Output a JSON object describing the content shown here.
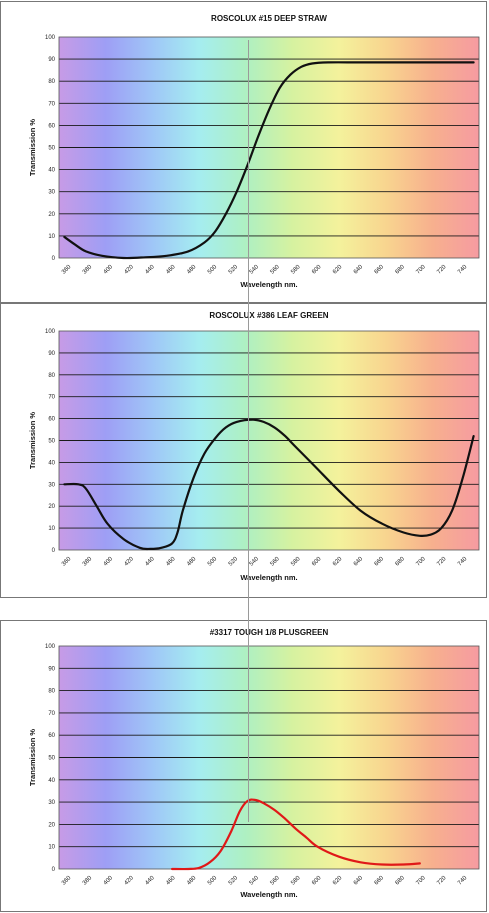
{
  "colors": {
    "curve_default": "#111111",
    "curve_highlight": "#e01818",
    "spectrum": [
      "#c79be6",
      "#9e9ef5",
      "#9fc6f7",
      "#a5edf0",
      "#aef0c2",
      "#d6f2a0",
      "#f4f29c",
      "#f8d58f",
      "#f7b08e",
      "#f69ba1"
    ]
  },
  "chart_data": [
    {
      "type": "line",
      "title": "ROSCOLUX #15 DEEP STRAW",
      "xlabel": "Wavelength nm.",
      "ylabel": "Transmission %",
      "ylim": [
        0,
        100
      ],
      "xlim": [
        360,
        750
      ],
      "yticks": [
        "0",
        "10",
        "20",
        "30",
        "40",
        "50",
        "60",
        "70",
        "80",
        "90",
        "100"
      ],
      "xticks": [
        "360",
        "380",
        "400",
        "420",
        "440",
        "460",
        "480",
        "500",
        "520",
        "540",
        "560",
        "580",
        "600",
        "620",
        "640",
        "660",
        "680",
        "700",
        "720",
        "740"
      ],
      "grid": true,
      "series": [
        {
          "color": "#111111",
          "x": [
            365,
            375,
            385,
            400,
            420,
            440,
            460,
            480,
            495,
            505,
            515,
            525,
            535,
            545,
            555,
            565,
            575,
            585,
            595,
            610,
            640,
            680,
            720,
            745
          ],
          "y": [
            9.5,
            6,
            3,
            1,
            0,
            0.3,
            1,
            3,
            7,
            12,
            20,
            30,
            42,
            55,
            67,
            77,
            83,
            86.5,
            88,
            88.5,
            88.5,
            88.5,
            88.5,
            88.5
          ]
        }
      ]
    },
    {
      "type": "line",
      "title": "ROSCOLUX #386 LEAF GREEN",
      "xlabel": "Wavelength nm.",
      "ylabel": "Transmission %",
      "ylim": [
        0,
        100
      ],
      "xlim": [
        360,
        750
      ],
      "yticks": [
        "0",
        "10",
        "20",
        "30",
        "40",
        "50",
        "60",
        "70",
        "80",
        "90",
        "100"
      ],
      "xticks": [
        "360",
        "380",
        "400",
        "420",
        "440",
        "460",
        "480",
        "500",
        "520",
        "540",
        "560",
        "580",
        "600",
        "620",
        "640",
        "660",
        "680",
        "700",
        "720",
        "740"
      ],
      "grid": true,
      "series": [
        {
          "color": "#111111",
          "x": [
            365,
            378,
            385,
            395,
            405,
            420,
            435,
            445,
            455,
            465,
            470,
            475,
            485,
            495,
            505,
            515,
            525,
            540,
            550,
            560,
            570,
            580,
            600,
            620,
            640,
            660,
            680,
            695,
            705,
            715,
            725,
            735,
            745
          ],
          "y": [
            30,
            30,
            28,
            20,
            12,
            5,
            1,
            0.5,
            1,
            3,
            8,
            18,
            33,
            44,
            51,
            56,
            58.5,
            59.5,
            58.5,
            56,
            52,
            47,
            37,
            27,
            18,
            12,
            8,
            6.5,
            7,
            10,
            18,
            33,
            52
          ]
        }
      ]
    },
    {
      "type": "line",
      "title": "#3317 TOUGH 1/8 PLUSGREEN",
      "xlabel": "Wavelength nm.",
      "ylabel": "Transmission %",
      "ylim": [
        0,
        100
      ],
      "xlim": [
        360,
        750
      ],
      "yticks": [
        "0",
        "10",
        "20",
        "30",
        "40",
        "50",
        "60",
        "70",
        "80",
        "90",
        "100"
      ],
      "xticks": [
        "360",
        "380",
        "400",
        "420",
        "440",
        "460",
        "480",
        "500",
        "520",
        "540",
        "560",
        "580",
        "600",
        "620",
        "640",
        "660",
        "680",
        "700",
        "720",
        "740"
      ],
      "grid": true,
      "series": [
        {
          "color": "#e01818",
          "x": [
            465,
            480,
            490,
            500,
            510,
            520,
            528,
            535,
            542,
            550,
            560,
            570,
            580,
            590,
            600,
            620,
            640,
            660,
            680,
            695
          ],
          "y": [
            0,
            0,
            0.5,
            3,
            8,
            17,
            26,
            30.5,
            31,
            29.5,
            26.5,
            22.5,
            18,
            14,
            10,
            5.5,
            3,
            2,
            2,
            2.5
          ]
        }
      ]
    }
  ]
}
